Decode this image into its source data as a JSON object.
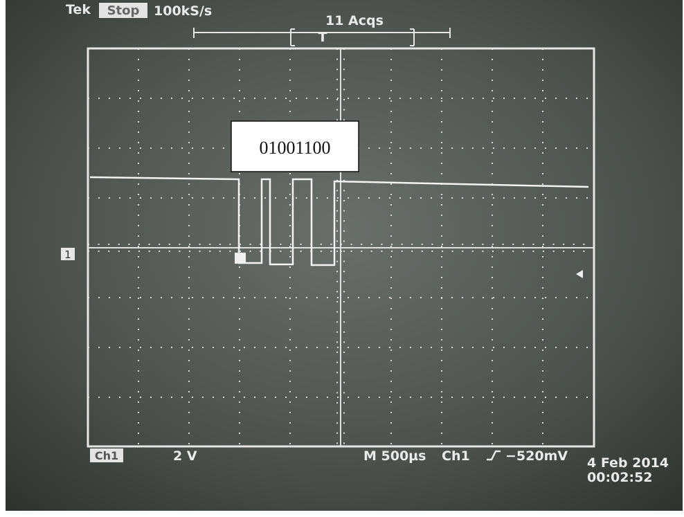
{
  "header": {
    "brand": "Tek",
    "state": "Stop",
    "sample_rate": "100kS/s",
    "acquisitions": "11 Acqs",
    "trigger_marker": "T"
  },
  "annotation": "01001100",
  "channel_marker": "1",
  "footer": {
    "channel": "Ch1",
    "volts_per_div": "2 V",
    "timebase": "M 500µs",
    "trigger_source": "Ch1",
    "trigger_level": "−520mV",
    "date": "4 Feb 2014",
    "time": "00:02:52"
  }
}
